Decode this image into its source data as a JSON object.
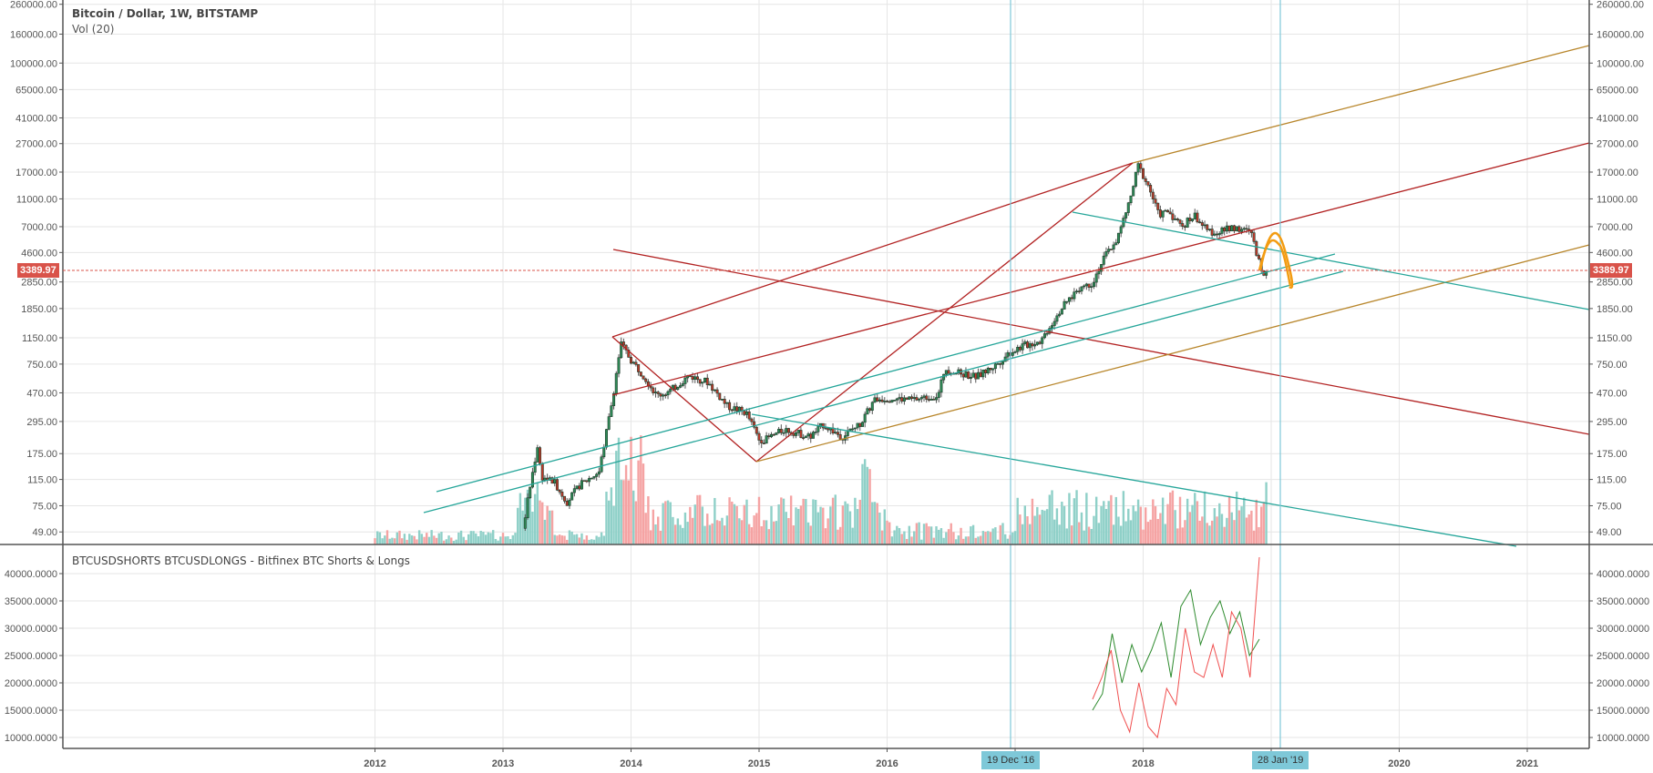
{
  "header": {
    "title": "Bitcoin / Dollar, 1W, BITSTAMP",
    "volume_label": "Vol (20)"
  },
  "indicator": {
    "title": "BTCUSDSHORTS BTCUSDLONGS - Bitfinex BTC Shorts & Longs"
  },
  "price_axis": {
    "ticks": [
      "260000.00",
      "160000.00",
      "100000.00",
      "65000.00",
      "41000.00",
      "27000.00",
      "17000.00",
      "11000.00",
      "7000.00",
      "4600.00",
      "2850.00",
      "1850.00",
      "1150.00",
      "750.00",
      "470.00",
      "295.00",
      "175.00",
      "115.00",
      "75.00",
      "49.00"
    ],
    "current_price": "3389.97"
  },
  "indicator_axis": {
    "ticks": [
      "40000.0000",
      "35000.0000",
      "30000.0000",
      "25000.0000",
      "20000.0000",
      "15000.0000",
      "10000.0000"
    ]
  },
  "time_axis": {
    "labels": [
      "2012",
      "2013",
      "2014",
      "2015",
      "2016",
      "2018",
      "2020",
      "2021"
    ],
    "markers": [
      "19 Dec '16",
      "28 Jan '19"
    ]
  },
  "colors": {
    "up_candle": "#2e8b57",
    "down_candle": "#c0392b",
    "vol_up": "#8fd0c8",
    "vol_down": "#f5a3a3",
    "price_line": "#d9534a",
    "trend_red": "#b22222",
    "trend_teal": "#26a69a",
    "trend_gold": "#b8862b",
    "arc_orange": "#f39c12",
    "marker_line": "#7ec8d8"
  },
  "chart_data": [
    {
      "type": "candlestick",
      "title": "Bitcoin / Dollar, 1W, BITSTAMP",
      "yscale": "log",
      "ylim": [
        45,
        260000
      ],
      "x_range": [
        "2011",
        "2021-06"
      ],
      "key_points": [
        {
          "date": "2013-04",
          "price": 230,
          "note": "April 2013 high"
        },
        {
          "date": "2013-12",
          "price": 1150,
          "note": "Dec 2013 high"
        },
        {
          "date": "2015-01",
          "price": 175,
          "note": "Jan 2015 low"
        },
        {
          "date": "2017-12",
          "price": 19500,
          "note": "Dec 2017 ATH"
        },
        {
          "date": "2018-12",
          "price": 3200,
          "note": "Dec 2018 low"
        }
      ],
      "last_price": 3389.97,
      "annotations": [
        "Red pitchfork from 2013 high",
        "Teal parallel channels",
        "Gold trendline",
        "Orange projected arc",
        "Vertical markers 19 Dec '16 and 28 Jan '19"
      ]
    },
    {
      "type": "line",
      "title": "BTCUSDSHORTS BTCUSDLONGS - Bitfinex BTC Shorts & Longs",
      "ylim": [
        8000,
        42000
      ],
      "series": [
        {
          "name": "BTCUSDLONGS",
          "color": "#2e8b2e",
          "range_start": "2017-06",
          "approx_values": [
            15000,
            18000,
            29000,
            20000,
            27000,
            22000,
            26000,
            31000,
            21000,
            34000,
            37000,
            27000,
            32000,
            35000,
            29000,
            33000,
            25000,
            28000
          ]
        },
        {
          "name": "BTCUSDSHORTS",
          "color": "#f05050",
          "range_start": "2017-06",
          "approx_values": [
            17000,
            21000,
            26000,
            15000,
            11000,
            20000,
            12000,
            10000,
            19000,
            16000,
            30000,
            22000,
            21000,
            27000,
            21000,
            33000,
            30000,
            21000,
            43000
          ]
        }
      ]
    }
  ]
}
